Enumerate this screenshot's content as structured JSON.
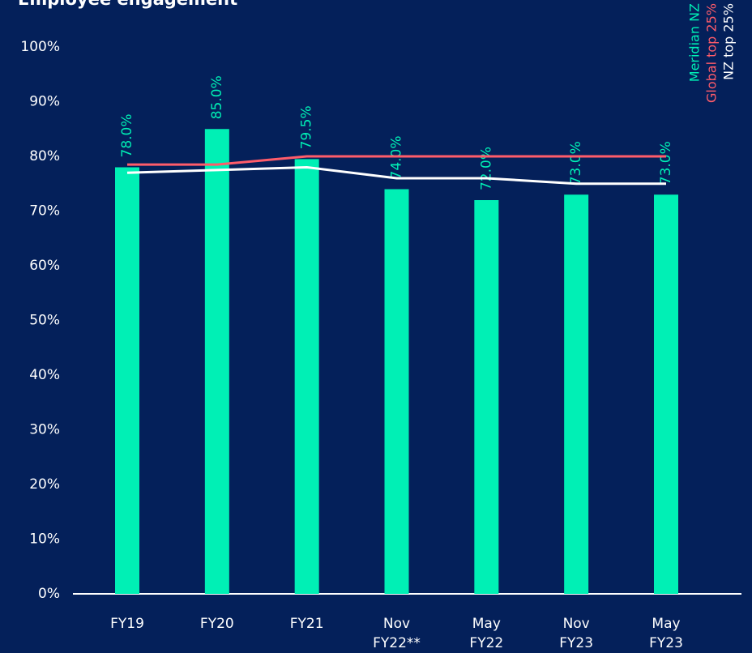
{
  "chart_data": {
    "type": "bar",
    "title": "Employee engagement",
    "categories": [
      [
        "FY19"
      ],
      [
        "FY20"
      ],
      [
        "FY21"
      ],
      [
        "Nov",
        "FY22**"
      ],
      [
        "May",
        "FY22"
      ],
      [
        "Nov",
        "FY23"
      ],
      [
        "May",
        "FY23"
      ]
    ],
    "series": [
      {
        "name": "Meridian NZ",
        "type": "bar",
        "color": "#00f0b5",
        "values": [
          78.0,
          85.0,
          79.5,
          74.0,
          72.0,
          73.0,
          73.0
        ],
        "value_labels": [
          "78.0%",
          "85.0%",
          "79.5%",
          "74.0%",
          "72.0%",
          "73.0%",
          "73.0%"
        ]
      },
      {
        "name": "Global top 25%",
        "type": "line",
        "color": "#ff5c6a",
        "values": [
          78.5,
          78.5,
          80,
          80,
          80,
          80,
          80
        ]
      },
      {
        "name": "NZ top 25%",
        "type": "line",
        "color": "#ffffff",
        "values": [
          77,
          77.5,
          78,
          76,
          76,
          75,
          75
        ]
      }
    ],
    "ylim": [
      0,
      100
    ],
    "yticks": [
      {
        "value": 0,
        "label": "0%"
      },
      {
        "value": 10,
        "label": "10%"
      },
      {
        "value": 20,
        "label": "20%"
      },
      {
        "value": 30,
        "label": "30%"
      },
      {
        "value": 40,
        "label": "40%"
      },
      {
        "value": 50,
        "label": "50%"
      },
      {
        "value": 60,
        "label": "60%"
      },
      {
        "value": 70,
        "label": "70%"
      },
      {
        "value": 80,
        "label": "80%"
      },
      {
        "value": 90,
        "label": "90%"
      },
      {
        "value": 100,
        "label": "100%"
      }
    ],
    "grid": false
  }
}
